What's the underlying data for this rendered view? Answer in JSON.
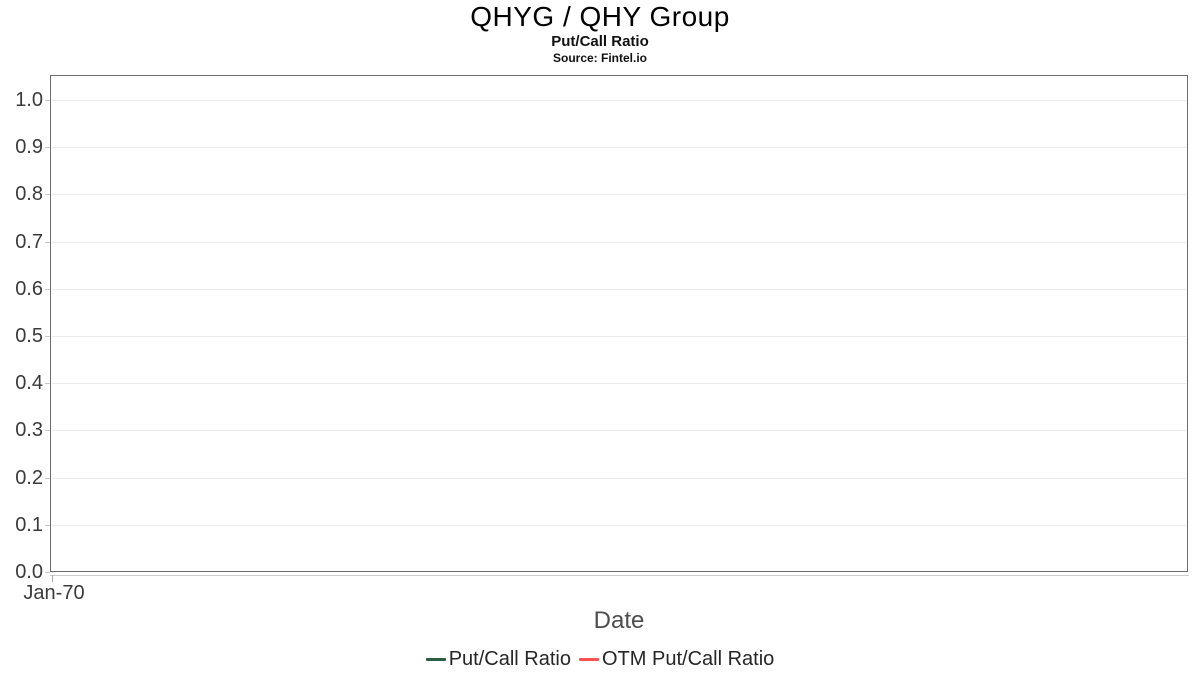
{
  "header": {
    "title": "QHYG / QHY Group",
    "subtitle": "Put/Call Ratio",
    "source": "Source: Fintel.io"
  },
  "chart_data": {
    "type": "line",
    "title": "QHYG / QHY Group",
    "subtitle": "Put/Call Ratio",
    "source": "Source: Fintel.io",
    "xlabel": "Date",
    "ylabel": "",
    "ylim": [
      0.0,
      1.05
    ],
    "y_ticks": [
      "0.0",
      "0.1",
      "0.2",
      "0.3",
      "0.4",
      "0.5",
      "0.6",
      "0.7",
      "0.8",
      "0.9",
      "1.0"
    ],
    "x_ticks": [
      "Jan-70"
    ],
    "grid": "horizontal",
    "legend_position": "bottom-center",
    "series": [
      {
        "name": "Put/Call Ratio",
        "color": "#2e5e41",
        "x": [],
        "values": []
      },
      {
        "name": "OTM Put/Call Ratio",
        "color": "#fc5151",
        "x": [],
        "values": []
      }
    ],
    "colors": {
      "frame": "#6b6b6b",
      "gridline": "#e9e9e9",
      "tick": "#c9c9c9",
      "tick_label": "#3a3a3a",
      "axis_title": "#4d4d4d",
      "title": "#000000"
    }
  }
}
